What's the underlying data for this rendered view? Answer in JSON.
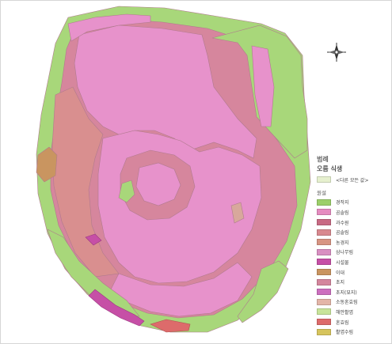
{
  "legend": {
    "title": "범례",
    "subtitle": "오름 식생",
    "other_values": "<다른 모든 값>",
    "group_label": "원설",
    "other_values_color": "#e6f0cf",
    "items": [
      {
        "label": "경작지",
        "color": "#9ccf6a"
      },
      {
        "label": "곰솔림",
        "color": "#e58cc0"
      },
      {
        "label": "과수원",
        "color": "#c86a84"
      },
      {
        "label": "곰솔림",
        "color": "#d8898f"
      },
      {
        "label": "농경지",
        "color": "#d79583"
      },
      {
        "label": "삼나무림",
        "color": "#d98fc2"
      },
      {
        "label": "시설물",
        "color": "#c64fa6"
      },
      {
        "label": "이대",
        "color": "#c99560"
      },
      {
        "label": "초지",
        "color": "#d4869d"
      },
      {
        "label": "초지(묘지)",
        "color": "#cc6fbf"
      },
      {
        "label": "소동혼효림",
        "color": "#e3b5a8"
      },
      {
        "label": "해안활엽",
        "color": "#c8e49a"
      },
      {
        "label": "혼효림",
        "color": "#dd6b6b"
      },
      {
        "label": "활엽수림",
        "color": "#d6c45d"
      }
    ]
  },
  "compass": {
    "icon": "north-arrow-icon"
  },
  "map_colors": {
    "green": "#a8d77a",
    "pink": "#e792cb",
    "rose": "#d6869d",
    "salmon": "#d98f8f",
    "tan": "#c99560",
    "purple": "#c64fa6",
    "red": "#dd6b6b"
  }
}
